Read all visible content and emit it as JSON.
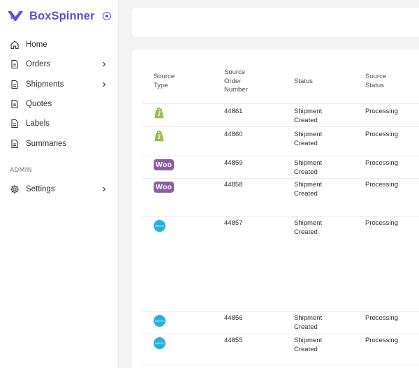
{
  "brand": {
    "name": "BoxSpinner",
    "accent": "#5b4fd6"
  },
  "sidebar": {
    "items": [
      {
        "label": "Home",
        "icon": "home-icon",
        "has_submenu": false
      },
      {
        "label": "Orders",
        "icon": "document-icon",
        "has_submenu": true
      },
      {
        "label": "Shipments",
        "icon": "document-icon",
        "has_submenu": true
      },
      {
        "label": "Quotes",
        "icon": "document-icon",
        "has_submenu": false
      },
      {
        "label": "Labels",
        "icon": "document-icon",
        "has_submenu": false
      },
      {
        "label": "Summaries",
        "icon": "document-icon",
        "has_submenu": false
      }
    ],
    "admin_label": "ADMIN",
    "settings": {
      "label": "Settings",
      "icon": "gear-icon",
      "has_submenu": true
    }
  },
  "table": {
    "columns": {
      "source_type": "Source Type",
      "order_number": "Source Order Number",
      "status": "Status",
      "source_status": "Source Status"
    },
    "source_icons": {
      "shopify": {
        "color": "#95bf47"
      },
      "woo": {
        "text": "Woo",
        "color": "#8b5fa6"
      },
      "wix": {
        "text": "MOVO",
        "color": "#21b3dc"
      }
    },
    "rows": [
      {
        "source": "shopify",
        "order_number": "44861",
        "status": "Shipment Created",
        "source_status": "Processing"
      },
      {
        "source": "shopify",
        "order_number": "44860",
        "status": "Shipment Created",
        "source_status": "Processing"
      },
      {
        "source": "woo",
        "order_number": "44859",
        "status": "Shipment Created",
        "source_status": "Processing"
      },
      {
        "source": "woo",
        "order_number": "44858",
        "status": "Shipment Created",
        "source_status": "Processing"
      },
      {
        "source": "wix",
        "order_number": "44857",
        "status": "Shipment Created",
        "source_status": "Processing"
      },
      {
        "source": "wix",
        "order_number": "44856",
        "status": "Shipment Created",
        "source_status": "Processing"
      },
      {
        "source": "wix",
        "order_number": "44855",
        "status": "Shipment Created",
        "source_status": "Processing"
      }
    ]
  }
}
